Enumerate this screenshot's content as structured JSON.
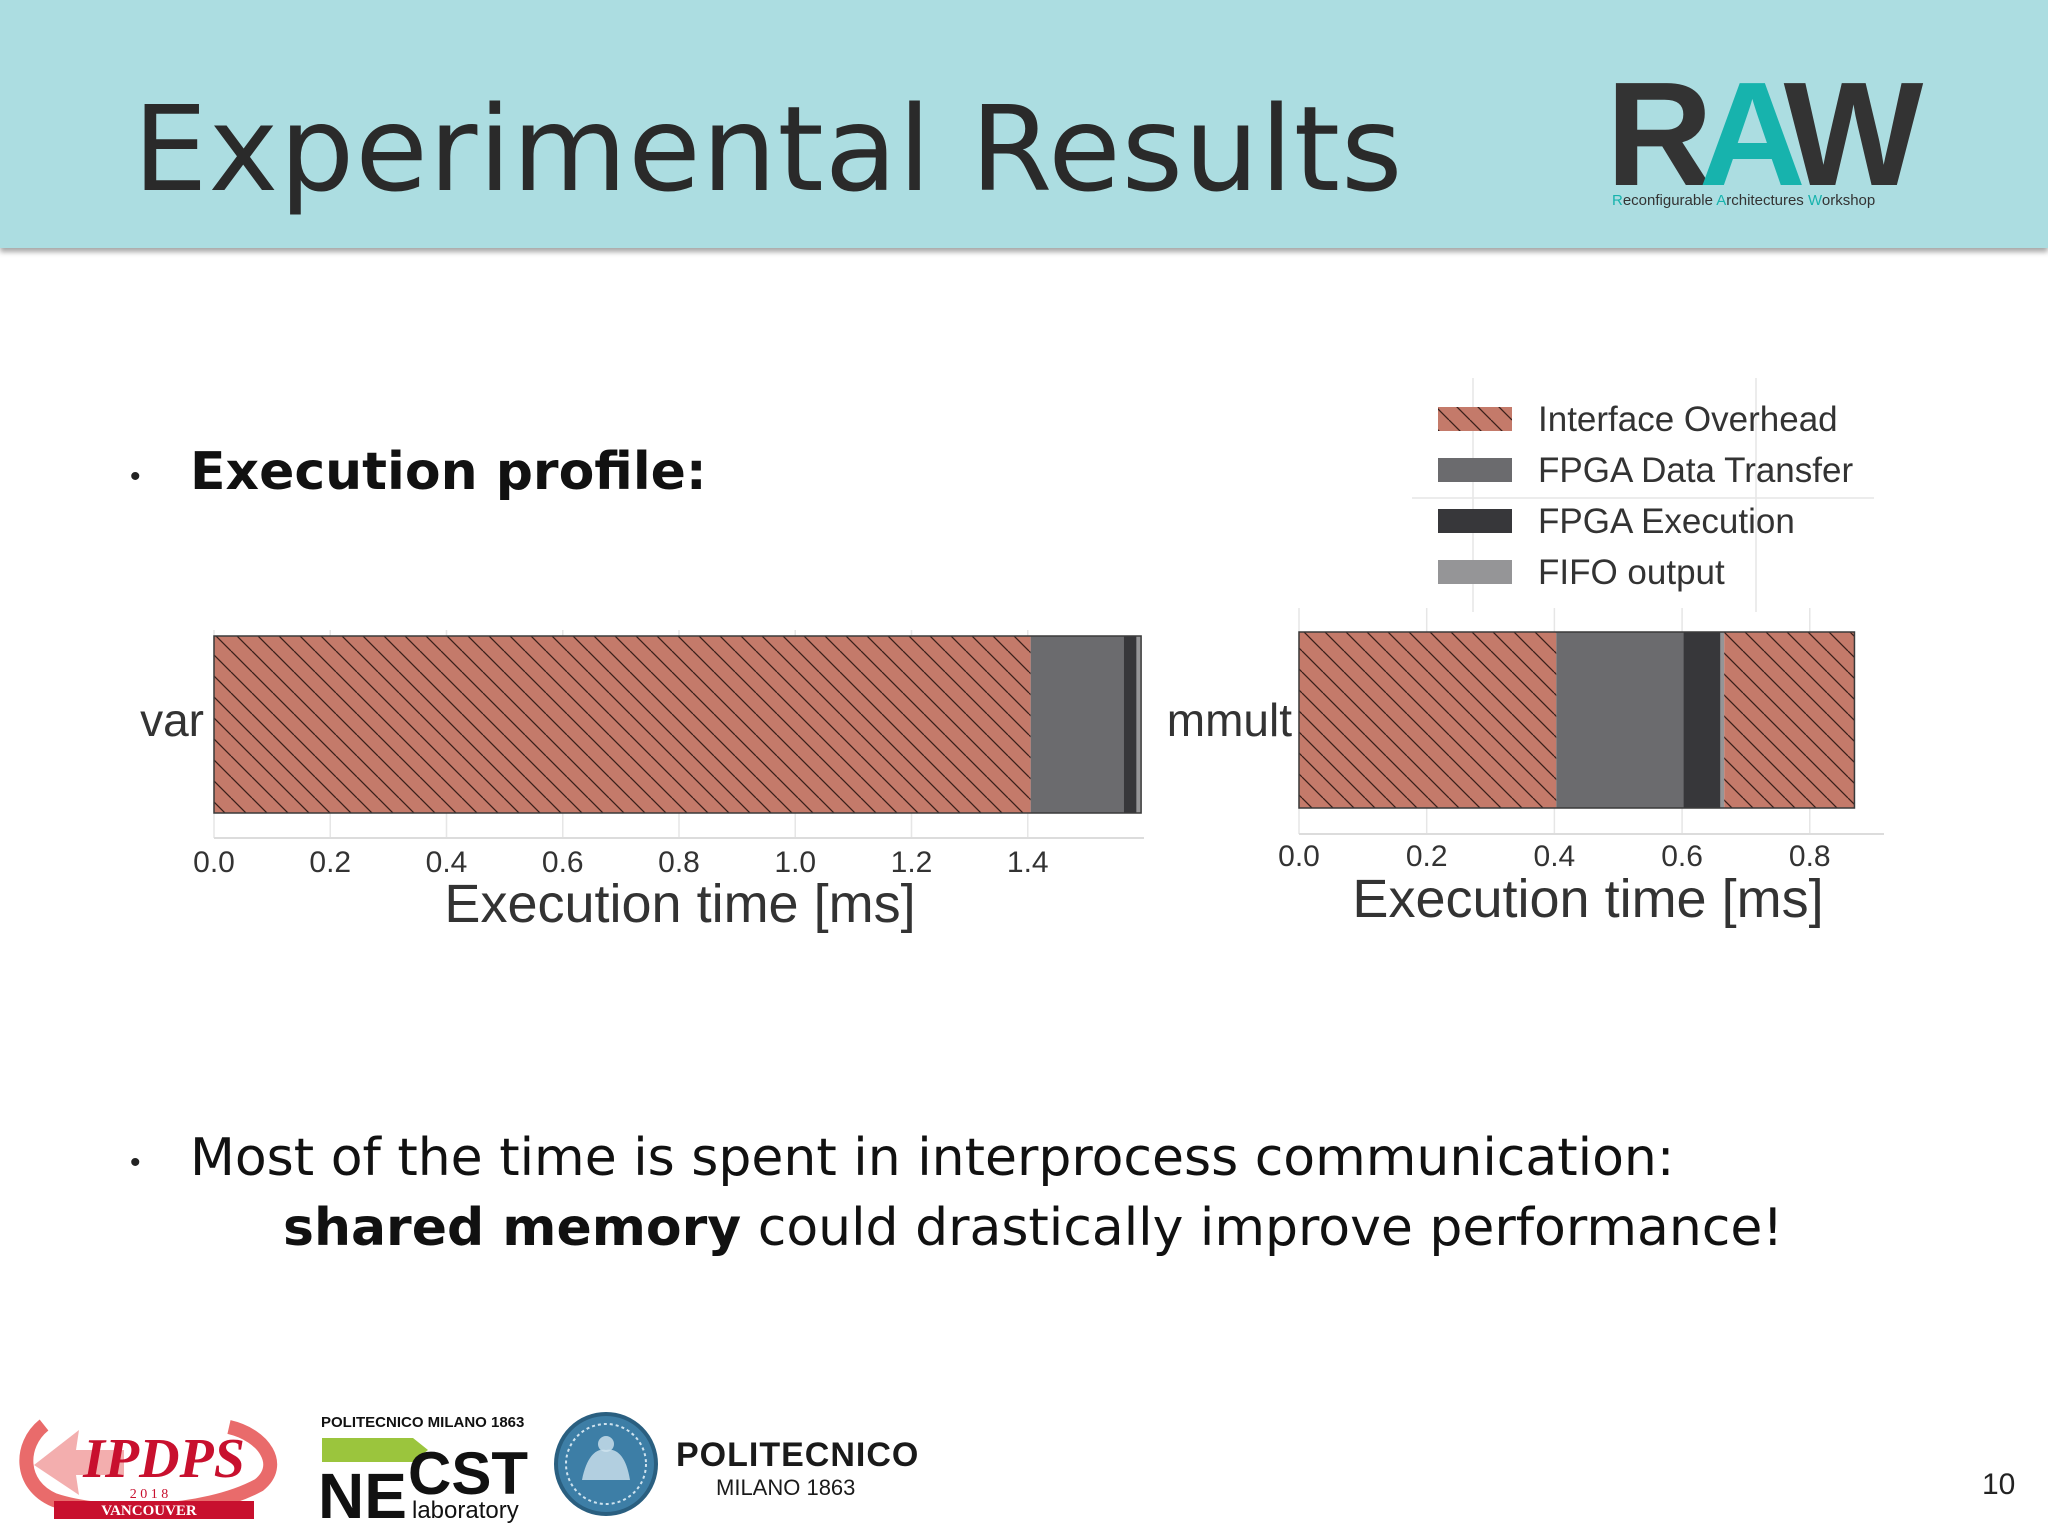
{
  "slide": {
    "title": "Experimental Results",
    "page_number": "10",
    "bullet1": "Execution profile:",
    "bullet2_line1": "Most of the time is spent in interprocess communication:",
    "bullet2_bold": "shared memory",
    "bullet2_rest": " could drastically improve performance!",
    "bullet_glyph": "•"
  },
  "logos": {
    "raw_letters": [
      "R",
      "A",
      "W"
    ],
    "raw_subtitle": [
      {
        "t": "R",
        "accent": true
      },
      {
        "t": "econfigurable ",
        "accent": false
      },
      {
        "t": "A",
        "accent": true
      },
      {
        "t": "rchitectures ",
        "accent": false
      },
      {
        "t": "W",
        "accent": true
      },
      {
        "t": "orkshop",
        "accent": false
      }
    ],
    "ipdps": "IPDPS",
    "ipdps_year": "2 0 1 8",
    "ipdps_city": "VANCOUVER",
    "necst_top": "POLITECNICO MILANO 1863",
    "necst_ne": "NE",
    "necst_cst": "CST",
    "necst_lab": "laboratory",
    "polimi_name": "POLITECNICO",
    "polimi_sub": "MILANO 1863"
  },
  "colors": {
    "header_bg": "#acdde1",
    "interface_overhead": "#c47a6a",
    "fpga_data_transfer": "#6b6b6e",
    "fpga_execution": "#37373a",
    "fifo_output": "#959597",
    "accent": "#17b3ad"
  },
  "legend": [
    {
      "label": "Interface Overhead",
      "key": "interface_overhead",
      "hatch": true
    },
    {
      "label": "FPGA Data Transfer",
      "key": "fpga_data_transfer",
      "hatch": false
    },
    {
      "label": "FPGA Execution",
      "key": "fpga_execution",
      "hatch": false
    },
    {
      "label": "FIFO output",
      "key": "fifo_output",
      "hatch": false
    }
  ],
  "chart_data": [
    {
      "type": "bar",
      "orientation": "horizontal",
      "stacked": true,
      "categories": [
        "var"
      ],
      "xlabel": "Execution time [ms]",
      "xticks": [
        0.0,
        0.2,
        0.4,
        0.6,
        0.8,
        1.0,
        1.2,
        1.4
      ],
      "xtick_labels": [
        "0.0",
        "0.2",
        "0.4",
        "0.6",
        "0.8",
        "1.0",
        "1.2",
        "1.4"
      ],
      "xlim": [
        0,
        1.6
      ],
      "segments": [
        {
          "key": "interface_overhead",
          "start": 0.0,
          "end": 1.405
        },
        {
          "key": "fpga_data_transfer",
          "start": 1.405,
          "end": 1.565
        },
        {
          "key": "fpga_execution",
          "start": 1.565,
          "end": 1.587
        },
        {
          "key": "fifo_output",
          "start": 1.587,
          "end": 1.595
        }
      ]
    },
    {
      "type": "bar",
      "orientation": "horizontal",
      "stacked": true,
      "categories": [
        "mmult"
      ],
      "xlabel": "Execution time [ms]",
      "xticks": [
        0.0,
        0.2,
        0.4,
        0.6,
        0.8
      ],
      "xtick_labels": [
        "0.0",
        "0.2",
        "0.4",
        "0.6",
        "0.8"
      ],
      "xlim": [
        0,
        0.91
      ],
      "segments": [
        {
          "key": "interface_overhead",
          "start": 0.0,
          "end": 0.403
        },
        {
          "key": "fpga_data_transfer",
          "start": 0.403,
          "end": 0.602
        },
        {
          "key": "fpga_execution",
          "start": 0.602,
          "end": 0.66
        },
        {
          "key": "fifo_output",
          "start": 0.66,
          "end": 0.666
        },
        {
          "key": "interface_overhead",
          "start": 0.666,
          "end": 0.87
        }
      ]
    }
  ]
}
